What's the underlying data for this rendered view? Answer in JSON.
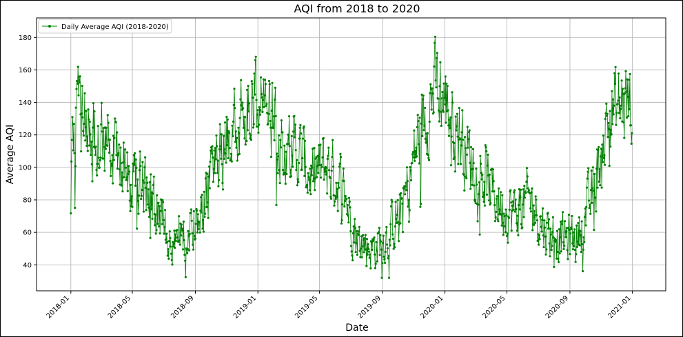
{
  "chart_data": {
    "type": "line",
    "title": "AQI from 2018 to 2020",
    "xlabel": "Date",
    "ylabel": "Average AQI",
    "x_start": "2018-01-01",
    "x_end": "2020-12-31",
    "xlim": [
      "2017-10-26",
      "2021-03-07"
    ],
    "ylim": [
      24,
      192
    ],
    "grid": true,
    "legend_position": "top-left",
    "x_ticks": [
      "2018-01",
      "2018-05",
      "2018-09",
      "2019-01",
      "2019-05",
      "2019-09",
      "2020-01",
      "2020-05",
      "2020-09",
      "2021-01"
    ],
    "y_ticks": [
      40,
      60,
      80,
      100,
      120,
      140,
      160,
      180
    ],
    "series": [
      {
        "name": "Daily Average AQI (2018-2020)",
        "color": "#008000",
        "marker": "circle",
        "monthly_mean": [
          {
            "month": "2018-01",
            "value": 133
          },
          {
            "month": "2018-02",
            "value": 117
          },
          {
            "month": "2018-03",
            "value": 114
          },
          {
            "month": "2018-04",
            "value": 101
          },
          {
            "month": "2018-05",
            "value": 91
          },
          {
            "month": "2018-06",
            "value": 76
          },
          {
            "month": "2018-07",
            "value": 58
          },
          {
            "month": "2018-08",
            "value": 60
          },
          {
            "month": "2018-09",
            "value": 78
          },
          {
            "month": "2018-10",
            "value": 110
          },
          {
            "month": "2018-11",
            "value": 127
          },
          {
            "month": "2018-12",
            "value": 145
          },
          {
            "month": "2019-01",
            "value": 140
          },
          {
            "month": "2019-02",
            "value": 115
          },
          {
            "month": "2019-03",
            "value": 112
          },
          {
            "month": "2019-04",
            "value": 95
          },
          {
            "month": "2019-05",
            "value": 101
          },
          {
            "month": "2019-06",
            "value": 88
          },
          {
            "month": "2019-07",
            "value": 55
          },
          {
            "month": "2019-08",
            "value": 50
          },
          {
            "month": "2019-09",
            "value": 60
          },
          {
            "month": "2019-10",
            "value": 80
          },
          {
            "month": "2019-11",
            "value": 125
          },
          {
            "month": "2019-12",
            "value": 150
          },
          {
            "month": "2020-01",
            "value": 133
          },
          {
            "month": "2020-02",
            "value": 108
          },
          {
            "month": "2020-03",
            "value": 95
          },
          {
            "month": "2020-04",
            "value": 78
          },
          {
            "month": "2020-05",
            "value": 72
          },
          {
            "month": "2020-06",
            "value": 80
          },
          {
            "month": "2020-07",
            "value": 62
          },
          {
            "month": "2020-08",
            "value": 56
          },
          {
            "month": "2020-09",
            "value": 57
          },
          {
            "month": "2020-10",
            "value": 82
          },
          {
            "month": "2020-11",
            "value": 132
          },
          {
            "month": "2020-12",
            "value": 140
          }
        ]
      }
    ]
  }
}
